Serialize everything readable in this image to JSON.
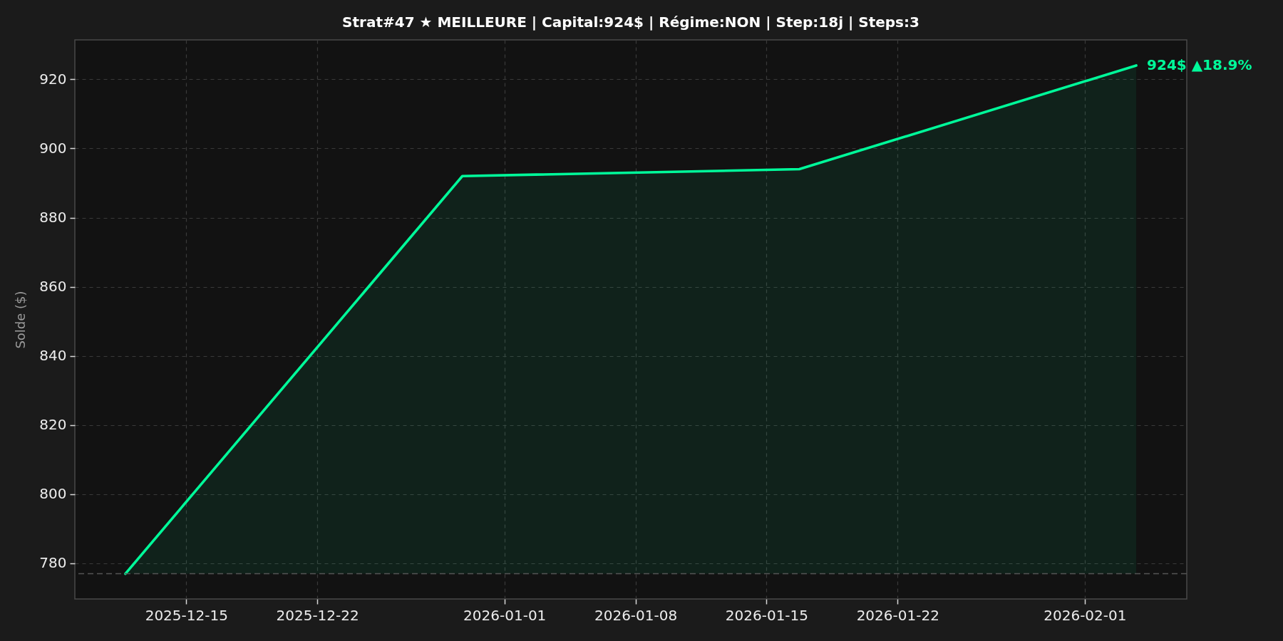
{
  "chart_data": {
    "type": "area",
    "title": "Strat#47 ★ MEILLEURE | Capital:924$ | Régime:NON | Step:18j | Steps:3",
    "ylabel": "Solde ($)",
    "x": [
      "2025-12-11T18:00",
      "2025-12-29T18:00",
      "2026-01-16T18:00",
      "2026-02-03T18:00"
    ],
    "series": [
      {
        "color": "#00fa9a",
        "values": [
          777,
          892,
          894,
          924
        ]
      }
    ],
    "xlim": [
      "2025-12-09T01:12",
      "2026-02-06T10:48"
    ],
    "xticks": [
      "2025-12-15",
      "2025-12-22",
      "2026-01-01",
      "2026-01-08",
      "2026-01-15",
      "2026-01-22",
      "2026-02-01"
    ],
    "ylim": [
      769.7,
      931.4
    ],
    "yticks": [
      780,
      800,
      820,
      840,
      860,
      880,
      900,
      920
    ],
    "ref_lines": [
      {
        "axis": "y",
        "value": 777,
        "color": "#555555",
        "line_style": "dashed"
      }
    ],
    "annotations": [
      {
        "text": "924$  ▲18.9%",
        "x": "2026-02-03T18:00",
        "y": 924
      }
    ],
    "grid": true
  }
}
